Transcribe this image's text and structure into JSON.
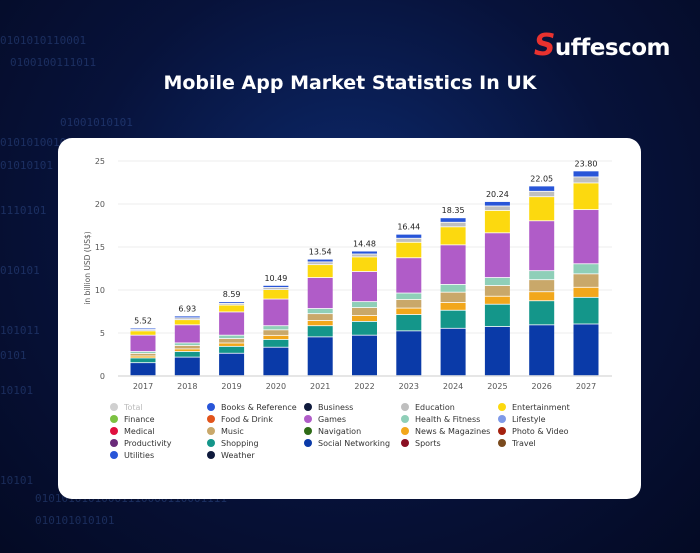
{
  "brand": {
    "logo_text": "suffescom"
  },
  "page_title": "Mobile App Market Statistics In UK",
  "background_binary": [
    "0101010110001",
    "0100100111011",
    "01001010101",
    "01010100101101100011100001120011",
    "01010101",
    "1110101",
    "010101",
    "101011",
    "0101",
    "10101",
    "10101",
    "01010101010001110000110001111",
    "010101010101"
  ],
  "chart_data": {
    "type": "bar",
    "stacked": true,
    "title": "",
    "xlabel": "",
    "ylabel": "in billion USD (US$)",
    "ylim": [
      0,
      25
    ],
    "yticks": [
      0,
      5,
      10,
      15,
      20,
      25
    ],
    "grid": true,
    "legend_position": "bottom",
    "categories": [
      "2017",
      "2018",
      "2019",
      "2020",
      "2021",
      "2022",
      "2023",
      "2024",
      "2025",
      "2026",
      "2027"
    ],
    "totals": [
      5.52,
      6.93,
      8.59,
      10.49,
      13.54,
      14.48,
      16.44,
      18.35,
      20.24,
      22.05,
      23.8
    ],
    "total_labels": [
      "5.52",
      "6.93",
      "8.59",
      "10.49",
      "13.54",
      "14.48",
      "16.44",
      "18.35",
      "20.24",
      "22.05",
      "23.80"
    ],
    "series": [
      {
        "name": "Social Networking",
        "color": "#0a3aa8",
        "values": [
          1.5,
          2.15,
          2.6,
          3.3,
          4.5,
          4.7,
          5.2,
          5.5,
          5.7,
          5.9,
          6.0
        ]
      },
      {
        "name": "Shopping",
        "color": "#14968a",
        "values": [
          0.55,
          0.65,
          0.8,
          0.9,
          1.3,
          1.6,
          1.9,
          2.1,
          2.6,
          2.8,
          3.1
        ]
      },
      {
        "name": "News & Magazines",
        "color": "#f2a71b",
        "values": [
          0.23,
          0.3,
          0.39,
          0.48,
          0.6,
          0.69,
          0.75,
          0.9,
          0.93,
          1.05,
          1.17
        ]
      },
      {
        "name": "Music",
        "color": "#c9a86a",
        "values": [
          0.3,
          0.4,
          0.52,
          0.64,
          0.8,
          0.92,
          1.0,
          1.2,
          1.24,
          1.4,
          1.56
        ]
      },
      {
        "name": "Health & Fitness",
        "color": "#8fcfb8",
        "values": [
          0.22,
          0.3,
          0.39,
          0.48,
          0.6,
          0.69,
          0.75,
          0.9,
          0.93,
          1.05,
          1.17
        ]
      },
      {
        "name": "Games",
        "color": "#b05cc8",
        "values": [
          1.9,
          2.1,
          2.7,
          3.1,
          3.6,
          3.5,
          4.1,
          4.6,
          5.2,
          5.8,
          6.3
        ]
      },
      {
        "name": "Entertainment",
        "color": "#fcd90f",
        "values": [
          0.5,
          0.6,
          0.8,
          1.1,
          1.5,
          1.7,
          1.8,
          2.1,
          2.6,
          2.8,
          3.1
        ]
      },
      {
        "name": "Education",
        "color": "#bfbfbf",
        "values": [
          0.16,
          0.22,
          0.2,
          0.25,
          0.32,
          0.34,
          0.47,
          0.53,
          0.52,
          0.63,
          0.7
        ]
      },
      {
        "name": "Books & Reference",
        "color": "#2855d8",
        "values": [
          0.16,
          0.21,
          0.19,
          0.24,
          0.32,
          0.34,
          0.47,
          0.52,
          0.52,
          0.62,
          0.7
        ]
      }
    ],
    "legend": [
      {
        "name": "Total",
        "color": "#d0d0d0"
      },
      {
        "name": "Books & Reference",
        "color": "#2855d8"
      },
      {
        "name": "Business",
        "color": "#0f1a3c"
      },
      {
        "name": "Education",
        "color": "#bfbfbf"
      },
      {
        "name": "Entertainment",
        "color": "#fcd90f"
      },
      {
        "name": "Finance",
        "color": "#7cc242"
      },
      {
        "name": "Food & Drink",
        "color": "#e2541b"
      },
      {
        "name": "Games",
        "color": "#b05cc8"
      },
      {
        "name": "Health & Fitness",
        "color": "#8fcfb8"
      },
      {
        "name": "Lifestyle",
        "color": "#7f9ae8"
      },
      {
        "name": "Medical",
        "color": "#e0103f"
      },
      {
        "name": "Music",
        "color": "#c9a86a"
      },
      {
        "name": "Navigation",
        "color": "#2e6b17"
      },
      {
        "name": "News & Magazines",
        "color": "#f2a71b"
      },
      {
        "name": "Photo & Video",
        "color": "#a5220f"
      },
      {
        "name": "Productivity",
        "color": "#6a2a7a"
      },
      {
        "name": "Shopping",
        "color": "#14968a"
      },
      {
        "name": "Social Networking",
        "color": "#0a3aa8"
      },
      {
        "name": "Sports",
        "color": "#8a0f22"
      },
      {
        "name": "Travel",
        "color": "#7a4a1e"
      },
      {
        "name": "Utilities",
        "color": "#2855d8"
      },
      {
        "name": "Weather",
        "color": "#0f1a3c"
      }
    ]
  }
}
